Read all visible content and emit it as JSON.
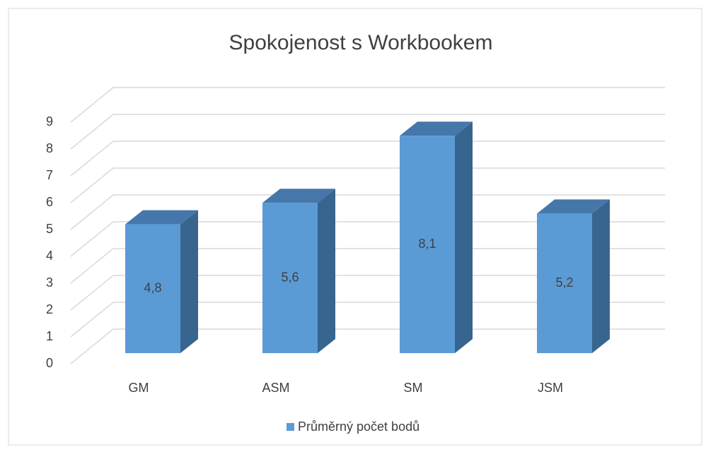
{
  "chart_data": {
    "type": "bar3d",
    "title": "Spokojenost s Workbookem",
    "categories": [
      "GM",
      "ASM",
      "SM",
      "JSM"
    ],
    "series": [
      {
        "name": "Průměrný počet bodů",
        "color": "#5b9bd5",
        "values": [
          4.8,
          5.6,
          8.1,
          5.2
        ],
        "value_labels": [
          "4,8",
          "5,6",
          "8,1",
          "5,2"
        ]
      }
    ],
    "ylim": [
      0,
      9
    ],
    "yticks": [
      0,
      1,
      2,
      3,
      4,
      5,
      6,
      7,
      8,
      9
    ],
    "grid": true,
    "legend": "bottom"
  }
}
